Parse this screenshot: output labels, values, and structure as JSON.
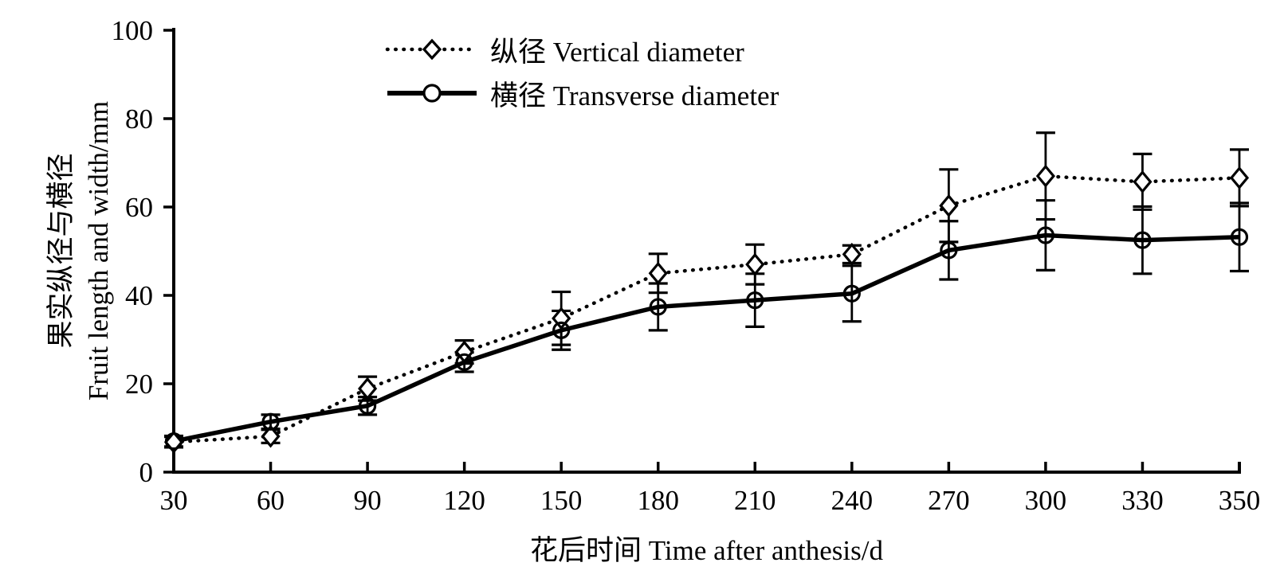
{
  "figure": {
    "background": "#ffffff",
    "ink_color": "#000000"
  },
  "legend": {
    "items": [
      {
        "label": "纵径 Vertical diameter",
        "marker": "diamond",
        "line_style": "dotted"
      },
      {
        "label": "横径 Transverse diameter",
        "marker": "circle",
        "line_style": "solid"
      }
    ]
  },
  "chart_data": {
    "type": "line",
    "x": [
      30,
      60,
      90,
      120,
      150,
      180,
      210,
      240,
      270,
      300,
      330,
      350
    ],
    "series": [
      {
        "name": "纵径 Vertical diameter",
        "marker": "diamond",
        "line_style": "dotted",
        "values": [
          6.8,
          8.1,
          18.9,
          27.2,
          34.8,
          45.0,
          47.0,
          49.3,
          60.3,
          67.0,
          65.7,
          66.6
        ],
        "errors": [
          1.2,
          1.5,
          2.7,
          2.6,
          6.0,
          4.4,
          4.5,
          2.0,
          8.2,
          9.8,
          6.3,
          6.4
        ]
      },
      {
        "name": "横径 Transverse diameter",
        "marker": "circle",
        "line_style": "solid",
        "values": [
          7.0,
          11.4,
          15.0,
          24.9,
          32.1,
          37.4,
          38.9,
          40.4,
          50.2,
          53.6,
          52.5,
          53.2
        ],
        "errors": [
          1.2,
          1.6,
          2.0,
          2.2,
          4.4,
          5.3,
          6.0,
          6.3,
          6.6,
          7.9,
          7.6,
          7.7
        ]
      }
    ],
    "xlabel": "花后时间 Time after anthesis/d",
    "ylabel_zh": "果实纵径与横径",
    "ylabel_en": "Fruit length and width/mm",
    "ylim": [
      0,
      100
    ],
    "yticks": [
      0,
      20,
      40,
      60,
      80,
      100
    ],
    "grid": false,
    "error_bars": true,
    "legend_position": "top-left-inside"
  }
}
